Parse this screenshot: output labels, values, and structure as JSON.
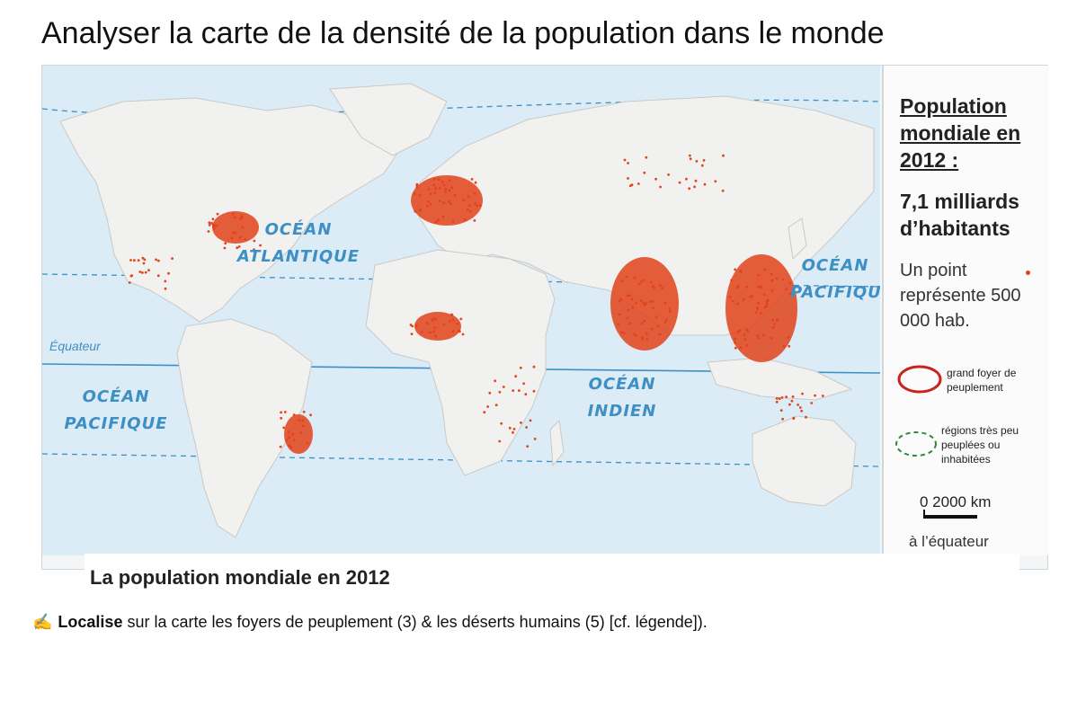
{
  "page_title": "Analyser la carte de la densité de la population dans le monde",
  "map": {
    "oceans": {
      "atlantic": "OCÉAN ATLANTIQUE",
      "pacific_east": "OCÉAN PACIFIQUE",
      "pacific_west": "OCÉAN PACIFIQUE",
      "indian": "OCÉAN INDIEN"
    },
    "equator_label": "Équateur",
    "colors": {
      "sea": "#dcecf6",
      "land": "#f1f1ef",
      "dots": "#e2431a",
      "ocean_text": "#3d8fc4"
    }
  },
  "legend": {
    "title": "Population mondiale en 2012 :",
    "total": "7,1 milliards d’habitants",
    "point_text": "Un point représente 500 000 hab.",
    "foyer": "grand foyer de peuplement",
    "desert": "régions très peu peuplées ou inhabitées",
    "scale_label": "0    2000 km",
    "scale_note": "à l’équateur"
  },
  "caption": "La population mondiale en 2012",
  "instruction": {
    "icon": "pencil-pointer-icon",
    "verb": "Localise",
    "rest": " sur la carte les foyers de peuplement (3) & les déserts humains (5) [cf. légende])."
  }
}
